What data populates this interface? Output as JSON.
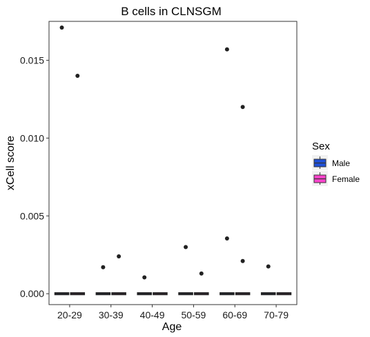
{
  "chart_data": {
    "type": "boxplot",
    "title": "B cells in CLNSGM",
    "xlabel": "Age",
    "ylabel": "xCell score",
    "categories": [
      "20-29",
      "30-39",
      "40-49",
      "50-59",
      "60-69",
      "70-79"
    ],
    "ylim": [
      -0.0007,
      0.0175
    ],
    "yticks": [
      0.0,
      0.005,
      0.01,
      0.015
    ],
    "ytick_labels": [
      "0.000",
      "0.005",
      "0.010",
      "0.015"
    ],
    "grid": false,
    "legend_position": "right",
    "legend": {
      "title": "Sex",
      "entries": [
        {
          "label": "Male",
          "color": "#1f4fd6"
        },
        {
          "label": "Female",
          "color": "#ff44cc"
        }
      ]
    },
    "series": [
      {
        "name": "Male",
        "color": "#1f4fd6",
        "median": [
          0,
          0,
          0,
          0,
          0,
          0
        ],
        "outliers": [
          [
            0.0171
          ],
          [
            0.0017
          ],
          [
            0.00105
          ],
          [
            0.003
          ],
          [
            0.0157,
            0.00355
          ],
          [
            0.00175
          ]
        ]
      },
      {
        "name": "Female",
        "color": "#ff44cc",
        "median": [
          0,
          0,
          0,
          0,
          0,
          0
        ],
        "outliers": [
          [
            0.014
          ],
          [
            0.0024
          ],
          [],
          [
            0.0013
          ],
          [
            0.012,
            0.0021
          ],
          []
        ]
      }
    ]
  }
}
